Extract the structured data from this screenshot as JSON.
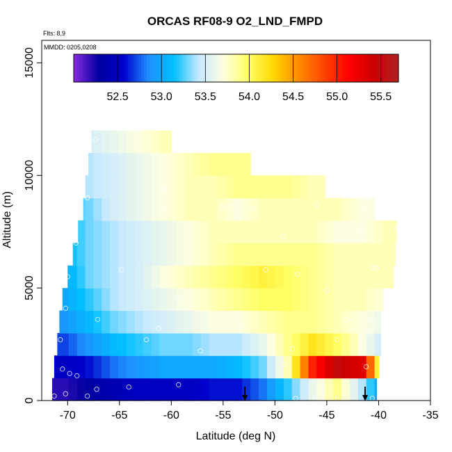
{
  "chart_data": {
    "type": "heatmap",
    "title": "ORCAS RF08-9 O2_LND_FMPD",
    "xlabel": "Latitude (deg N)",
    "ylabel": "Altitude (m)",
    "xlim": [
      -72.5,
      -35
    ],
    "ylim": [
      0,
      16000
    ],
    "x_ticks": [
      "-70",
      "-65",
      "-60",
      "-55",
      "-50",
      "-45",
      "-40",
      "-35"
    ],
    "y_ticks": [
      "0",
      "5000",
      "10000",
      "15000"
    ],
    "notes": {
      "flights": "Flts: 8,9",
      "dates": "MMDD: 0205,0208"
    },
    "colorbar": {
      "range": [
        52.0,
        55.7
      ],
      "tick_labels": [
        "52.5",
        "53.0",
        "53.5",
        "54.0",
        "54.5",
        "55.0",
        "55.5"
      ],
      "colors": [
        "#8a2be2",
        "#0000a0",
        "#0000cd",
        "#1e90ff",
        "#00bfff",
        "#c6e8ff",
        "#ffffe0",
        "#ffff66",
        "#ffd700",
        "#ff8c00",
        "#ff4500",
        "#ff0000",
        "#cc0000",
        "#b22222"
      ]
    },
    "field": {
      "xmin": -71.5,
      "xmax": -38,
      "cols": 14,
      "row_altitudes": [
        500,
        1500,
        2500,
        3500,
        4500,
        5500,
        6500,
        7500,
        8500,
        9500,
        10500,
        11500
      ],
      "values": [
        [
          52.2,
          52.3,
          52.4,
          52.5,
          52.5,
          52.5,
          52.6,
          52.6,
          52.8,
          53.2,
          53.6,
          53.9,
          53.4,
          52.8
        ],
        [
          52.5,
          52.6,
          52.8,
          52.9,
          53.0,
          53.0,
          53.0,
          53.1,
          53.3,
          53.8,
          55.0,
          55.5,
          55.3,
          53.5
        ],
        [
          52.7,
          52.9,
          53.1,
          53.2,
          53.3,
          53.3,
          53.4,
          53.4,
          53.6,
          53.9,
          54.2,
          54.0,
          53.7,
          53.4
        ],
        [
          52.9,
          53.1,
          53.3,
          53.4,
          53.5,
          53.6,
          53.7,
          53.7,
          53.8,
          53.9,
          53.9,
          53.8,
          53.7,
          53.6
        ],
        [
          53.0,
          53.2,
          53.4,
          53.5,
          53.6,
          53.7,
          53.8,
          53.9,
          54.0,
          54.0,
          53.9,
          53.8,
          53.8,
          53.7
        ],
        [
          53.0,
          53.3,
          53.4,
          53.5,
          53.7,
          53.8,
          53.9,
          54.0,
          54.1,
          54.0,
          53.9,
          53.8,
          53.8,
          53.8
        ],
        [
          53.1,
          53.3,
          53.4,
          53.5,
          53.6,
          53.7,
          53.8,
          53.9,
          53.9,
          53.9,
          53.9,
          53.8,
          53.8,
          53.8
        ],
        [
          53.1,
          53.3,
          53.4,
          53.5,
          53.6,
          53.7,
          53.8,
          53.8,
          53.8,
          53.8,
          53.8,
          53.7,
          53.7,
          53.8
        ],
        [
          53.2,
          53.3,
          53.5,
          53.6,
          53.7,
          53.8,
          53.8,
          53.7,
          53.8,
          53.8,
          53.8,
          53.8,
          53.7,
          null
        ],
        [
          53.2,
          53.4,
          53.5,
          53.6,
          53.7,
          53.8,
          53.8,
          53.9,
          53.9,
          53.9,
          53.8,
          null,
          null,
          null
        ],
        [
          53.3,
          53.4,
          53.5,
          53.6,
          53.7,
          53.8,
          53.9,
          53.9,
          null,
          null,
          null,
          null,
          null,
          null
        ],
        [
          53.3,
          53.5,
          53.6,
          53.7,
          53.8,
          null,
          null,
          null,
          null,
          null,
          null,
          null,
          null,
          null
        ]
      ],
      "row_lat_min": [
        -71.5,
        -71.3,
        -71.0,
        -70.8,
        -70.5,
        -70.0,
        -69.5,
        -69.0,
        -68.5,
        -68.3,
        -68.0,
        -67.7
      ],
      "row_lat_max": [
        -40.2,
        -40.0,
        -39.8,
        -39.8,
        -39.5,
        -38.6,
        -38.4,
        -38.3,
        -38.5,
        -40.0,
        -45.0,
        -60.0
      ]
    },
    "sample_points": [
      [
        -71.3,
        200
      ],
      [
        -70.2,
        300
      ],
      [
        -69.8,
        1200
      ],
      [
        -70.5,
        1400
      ],
      [
        -70.7,
        2700
      ],
      [
        -70.2,
        4100
      ],
      [
        -70.0,
        5500
      ],
      [
        -69.2,
        7000
      ],
      [
        -68.1,
        9000
      ],
      [
        -67.3,
        11600
      ],
      [
        -68.1,
        200
      ],
      [
        -67.2,
        500
      ],
      [
        -64.1,
        600
      ],
      [
        -59.3,
        700
      ],
      [
        -67.1,
        3600
      ],
      [
        -64.8,
        5800
      ],
      [
        -61.2,
        3200
      ],
      [
        -59.4,
        4500
      ],
      [
        -57.2,
        2200
      ],
      [
        -62.4,
        2700
      ],
      [
        -55.1,
        8600
      ],
      [
        -54.4,
        8600
      ],
      [
        -52.1,
        8500
      ],
      [
        -49.2,
        7300
      ],
      [
        -53.1,
        3300
      ],
      [
        -50.9,
        5800
      ],
      [
        -47.8,
        5600
      ],
      [
        -48.3,
        2300
      ],
      [
        -49.1,
        1600
      ],
      [
        -44.0,
        2700
      ],
      [
        -43.1,
        3600
      ],
      [
        -41.7,
        7500
      ],
      [
        -40.6,
        5900
      ],
      [
        -40.2,
        5900
      ],
      [
        -40.4,
        3500
      ],
      [
        -41.2,
        1500
      ],
      [
        -46.1,
        100
      ],
      [
        -44.0,
        100
      ],
      [
        -41.0,
        3000
      ],
      [
        -45.9,
        8700
      ],
      [
        -41.3,
        8500
      ],
      [
        -60.7,
        9400
      ],
      [
        -60.9,
        8500
      ],
      [
        -38.3,
        7600
      ],
      [
        -40.6,
        100
      ],
      [
        -48.0,
        100
      ],
      [
        -45.0,
        4900
      ],
      [
        -69.1,
        1100
      ]
    ],
    "arrows": [
      -52.9,
      -41.3
    ]
  }
}
